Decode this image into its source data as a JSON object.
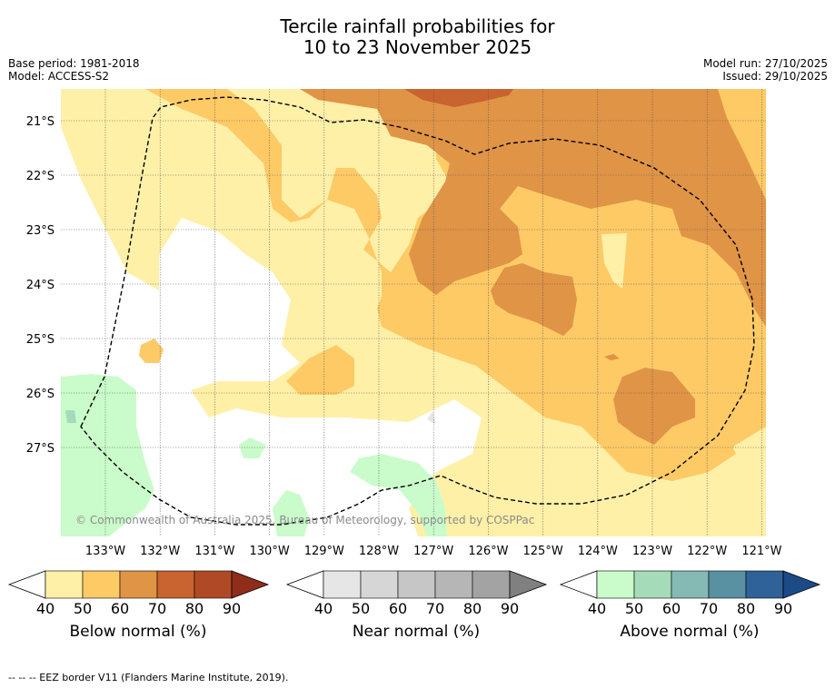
{
  "title_line1": "Tercile rainfall probabilities for",
  "title_line2": "10 to 23 November 2025",
  "base_period": "Base period: 1981-2018",
  "model": "Model: ACCESS-S2",
  "model_run": "Model run: 27/10/2025",
  "issued": "Issued: 29/10/2025",
  "copyright": "© Commonwealth of Australia 2025, Bureau of Meteorology, supported by COSPPac",
  "footer": "--  --  -- EEZ border V11 (Flanders Marine Institute, 2019).",
  "lat_labels": [
    "21°S",
    "22°S",
    "23°S",
    "24°S",
    "25°S",
    "26°S",
    "27°S"
  ],
  "lon_labels": [
    "133°W",
    "132°W",
    "131°W",
    "130°W",
    "129°W",
    "128°W",
    "127°W",
    "126°W",
    "125°W",
    "124°W",
    "123°W",
    "122°W",
    "121°W"
  ],
  "colors": {
    "below": [
      "#fff0a8",
      "#fdca66",
      "#e09446",
      "#c9632f",
      "#b04a26",
      "#8f2d1a"
    ],
    "near": [
      "#e6e6e6",
      "#d6d6d6",
      "#c6c6c6",
      "#b6b6b6",
      "#a3a3a3",
      "#808080"
    ],
    "above": [
      "#c9fcca",
      "#a6dbb9",
      "#84b9b4",
      "#5991a2",
      "#2e6298",
      "#1c4a86"
    ]
  },
  "colorbars": [
    {
      "label": "Below normal (%)",
      "ticks": [
        "40",
        "50",
        "60",
        "70",
        "80",
        "90"
      ],
      "palette": "below"
    },
    {
      "label": "Near normal (%)",
      "ticks": [
        "40",
        "50",
        "60",
        "70",
        "80",
        "90"
      ],
      "palette": "near"
    },
    {
      "label": "Above normal (%)",
      "ticks": [
        "40",
        "50",
        "60",
        "70",
        "80",
        "90"
      ],
      "palette": "above"
    }
  ]
}
